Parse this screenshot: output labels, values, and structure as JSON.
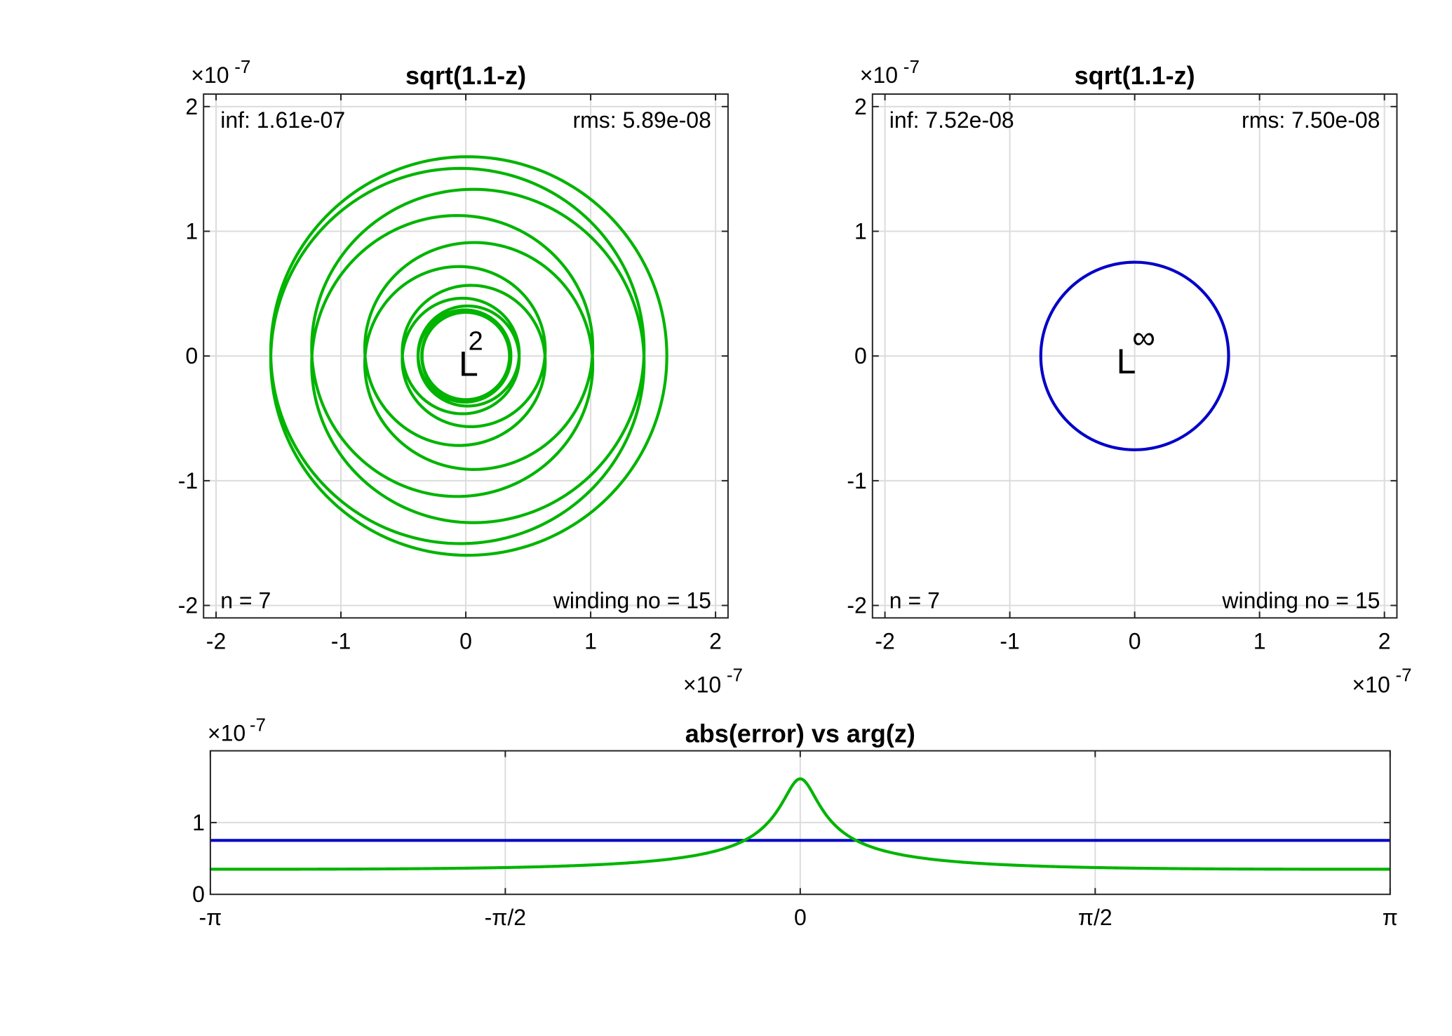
{
  "chart_data": [
    {
      "type": "line",
      "title": "sqrt(1.1-z)",
      "plot": "complex-plane error curve",
      "xlim": [
        -2.1,
        2.1
      ],
      "ylim": [
        -2.1,
        2.1
      ],
      "xticks": [
        "-2",
        "-1",
        "0",
        "1",
        "2"
      ],
      "yticks": [
        "2",
        "1",
        "0",
        "-1",
        "-2"
      ],
      "x_exponent": "-7",
      "y_exponent": "-7",
      "grid": true,
      "color": "#00b400",
      "annotations": {
        "top_left": "inf: 1.61e-07",
        "top_right": "rms: 5.89e-08",
        "bottom_left": "n = 7",
        "bottom_right": "winding no = 15",
        "center_base": "L",
        "center_sup": "2"
      },
      "curve": {
        "winding": 15,
        "max_radius": 1.61,
        "min_radius": 0.35
      }
    },
    {
      "type": "line",
      "title": "sqrt(1.1-z)",
      "plot": "complex-plane error curve",
      "xlim": [
        -2.1,
        2.1
      ],
      "ylim": [
        -2.1,
        2.1
      ],
      "xticks": [
        "-2",
        "-1",
        "0",
        "1",
        "2"
      ],
      "yticks": [
        "2",
        "1",
        "0",
        "-1",
        "-2"
      ],
      "x_exponent": "-7",
      "y_exponent": "-7",
      "grid": true,
      "color": "#0000c8",
      "annotations": {
        "top_left": "inf: 7.52e-08",
        "top_right": "rms: 7.50e-08",
        "bottom_left": "n = 7",
        "bottom_right": "winding no = 15",
        "center_base": "L",
        "center_sup": "∞"
      },
      "curve": {
        "winding": 15,
        "radius": 0.752
      }
    },
    {
      "type": "line",
      "title": "abs(error) vs arg(z)",
      "xlim": [
        -3.14159,
        3.14159
      ],
      "ylim": [
        0,
        2
      ],
      "xticks": [
        "-π",
        "-π/2",
        "0",
        "π/2",
        "π"
      ],
      "yticks": [
        "1",
        "0"
      ],
      "y_exponent": "-7",
      "grid": true,
      "series": [
        {
          "color": "#0000c8",
          "x": [
            -3.1416,
            0,
            3.1416
          ],
          "y": [
            0.752,
            0.752,
            0.752
          ]
        },
        {
          "color": "#00b400",
          "x": [
            -3.1416,
            -2.5,
            -2.0,
            -1.5708,
            -1.2,
            -0.8,
            -0.6,
            -0.4,
            -0.2,
            -0.1,
            0,
            0.1,
            0.2,
            0.4,
            0.6,
            0.8,
            1.2,
            1.5708,
            2.0,
            2.5,
            3.1416
          ],
          "y": [
            0.35,
            0.37,
            0.4,
            0.44,
            0.49,
            0.58,
            0.66,
            0.8,
            1.13,
            1.42,
            1.61,
            1.42,
            1.13,
            0.8,
            0.66,
            0.58,
            0.49,
            0.44,
            0.4,
            0.37,
            0.35
          ]
        }
      ]
    }
  ]
}
